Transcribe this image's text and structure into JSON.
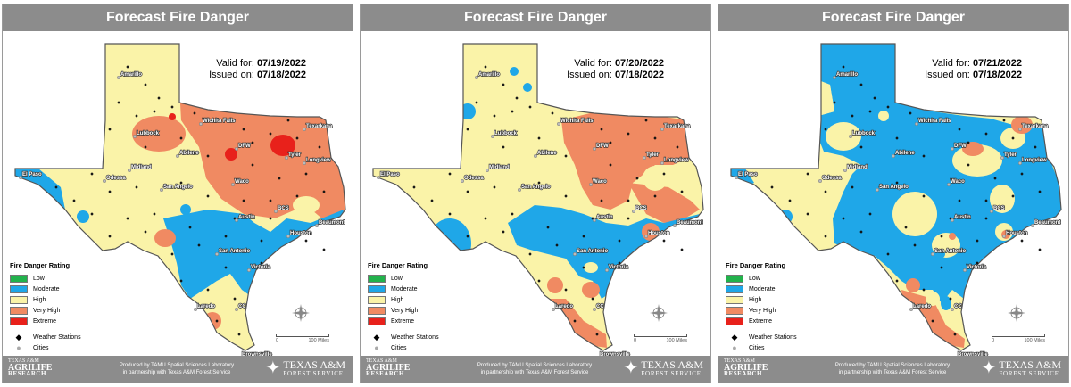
{
  "panels": [
    {
      "title": "Forecast Fire Danger",
      "valid_label": "Valid for:",
      "valid_date": "07/19/2022",
      "issued_label": "Issued on:",
      "issued_date": "07/18/2022"
    },
    {
      "title": "Forecast Fire Danger",
      "valid_label": "Valid for:",
      "valid_date": "07/20/2022",
      "issued_label": "Issued on:",
      "issued_date": "07/18/2022"
    },
    {
      "title": "Forecast Fire Danger",
      "valid_label": "Valid for:",
      "valid_date": "07/21/2022",
      "issued_label": "Issued on:",
      "issued_date": "07/18/2022"
    }
  ],
  "legend": {
    "title": "Fire Danger Rating",
    "items": [
      {
        "label": "Low",
        "color": "#22b24c"
      },
      {
        "label": "Moderate",
        "color": "#1fa7e8"
      },
      {
        "label": "High",
        "color": "#faf3a8"
      },
      {
        "label": "Very High",
        "color": "#f08a62"
      },
      {
        "label": "Extreme",
        "color": "#e8211b"
      }
    ],
    "stations_label": "Weather Stations",
    "cities_label": "Cities"
  },
  "scale": {
    "zero": "0",
    "distance": "100 Miles"
  },
  "compass": {
    "icon": "north-arrow-icon"
  },
  "footer": {
    "agrilife_line1": "TEXAS A&M",
    "agrilife_line2": "AGRILIFE",
    "agrilife_line3": "RESEARCH",
    "produced_line1": "Produced by TAMU Spatial Sciences Laboratory",
    "produced_line2": "in partnership with Texas A&M Forest Service",
    "tam_line1": "TEXAS A&M",
    "tam_line2": "FOREST SERVICE"
  },
  "cities": [
    "Amarillo",
    "Lubbock",
    "Wichita Falls",
    "Texarkana",
    "DFW",
    "Tyler",
    "Longview",
    "Abilene",
    "Midland",
    "El Paso",
    "Odessa",
    "San Angelo",
    "Waco",
    "Austin",
    "BCS",
    "Beaumont",
    "Houston",
    "San Antonio",
    "Victoria",
    "Laredo",
    "CC",
    "Brownsville"
  ]
}
